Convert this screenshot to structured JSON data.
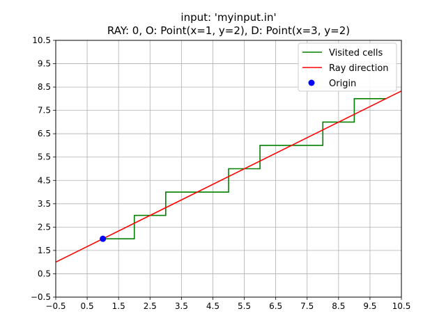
{
  "chart_data": {
    "type": "line",
    "title_line1": "input: 'myinput.in'",
    "title_line2": "RAY: 0, O: Point(x=1, y=2), D: Point(x=3, y=2)",
    "xlim": [
      -0.5,
      10.5
    ],
    "ylim": [
      -0.5,
      10.5
    ],
    "grid": true,
    "x_ticks": [
      -0.5,
      0.5,
      1.5,
      2.5,
      3.5,
      4.5,
      5.5,
      6.5,
      7.5,
      8.5,
      9.5,
      10.5
    ],
    "y_ticks": [
      -0.5,
      0.5,
      1.5,
      2.5,
      3.5,
      4.5,
      5.5,
      6.5,
      7.5,
      8.5,
      9.5,
      10.5
    ],
    "x_tick_labels": [
      "−0.5",
      "0.5",
      "1.5",
      "2.5",
      "3.5",
      "4.5",
      "5.5",
      "6.5",
      "7.5",
      "8.5",
      "9.5",
      "10.5"
    ],
    "y_tick_labels": [
      "−0.5",
      "0.5",
      "1.5",
      "2.5",
      "3.5",
      "4.5",
      "5.5",
      "6.5",
      "7.5",
      "8.5",
      "9.5",
      "10.5"
    ],
    "legend_position": "top-right",
    "series": [
      {
        "name": "Visited cells",
        "kind": "line",
        "color": "#008000",
        "x": [
          1,
          2,
          2,
          3,
          3,
          5,
          5,
          6,
          6,
          8,
          8,
          9,
          9,
          10
        ],
        "y": [
          2,
          2,
          3,
          3,
          4,
          4,
          5,
          5,
          6,
          6,
          7,
          7,
          8,
          8
        ]
      },
      {
        "name": "Ray direction",
        "kind": "line",
        "color": "#ff0000",
        "x": [
          -0.5,
          10.5
        ],
        "y": [
          1.0,
          8.33
        ]
      },
      {
        "name": "Origin",
        "kind": "scatter",
        "color": "#0000ff",
        "x": [
          1
        ],
        "y": [
          2
        ]
      }
    ]
  }
}
